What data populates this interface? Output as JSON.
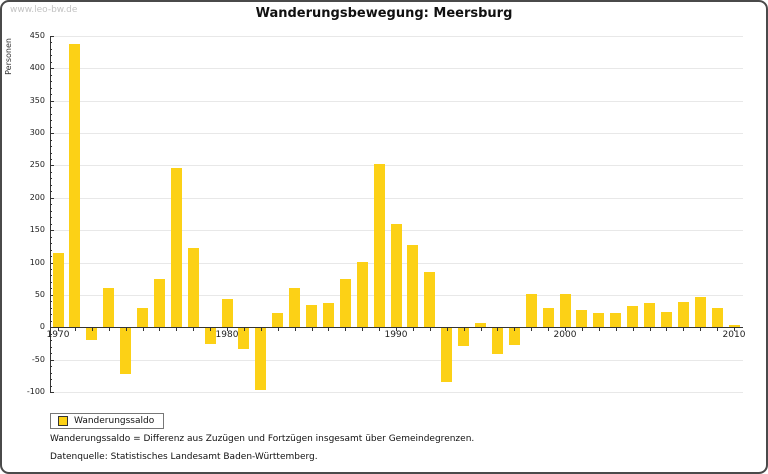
{
  "header": {
    "watermark": "www.leo-bw.de",
    "title": "Wanderungsbewegung: Meersburg"
  },
  "legend": {
    "label": "Wanderungssaldo"
  },
  "footnotes": [
    "Wanderungssaldo = Differenz aus Zuzügen und Fortzügen insgesamt über Gemeindegrenzen.",
    "Datenquelle: Statistisches Landesamt Baden-Württemberg."
  ],
  "chart_data": {
    "type": "bar",
    "title": "Wanderungsbewegung: Meersburg",
    "ylabel": "Personen",
    "xlabel": "",
    "series_name": "Wanderungssaldo",
    "x_start": 1970,
    "categories": [
      1970,
      1971,
      1972,
      1973,
      1974,
      1975,
      1976,
      1977,
      1978,
      1979,
      1980,
      1981,
      1982,
      1983,
      1984,
      1985,
      1986,
      1987,
      1988,
      1989,
      1990,
      1991,
      1992,
      1993,
      1994,
      1995,
      1996,
      1997,
      1998,
      1999,
      2000,
      2001,
      2002,
      2003,
      2004,
      2005,
      2006,
      2007,
      2008,
      2009,
      2010
    ],
    "values": [
      115,
      437,
      -18,
      60,
      -71,
      30,
      75,
      246,
      122,
      -24,
      43,
      -32,
      -95,
      22,
      60,
      34,
      37,
      74,
      101,
      253,
      160,
      127,
      86,
      -83,
      -27,
      7,
      -39,
      -26,
      52,
      30,
      52,
      26,
      22,
      22,
      33,
      38,
      23,
      39,
      47,
      30,
      3
    ],
    "ylim": [
      -100,
      450
    ],
    "ytick_step": 50,
    "y_minor_step": 10,
    "xticks": [
      1970,
      1980,
      1990,
      2000,
      2010
    ],
    "grid": true,
    "legend_position": "bottom-left",
    "bar_color": "#FCD116",
    "axis_color": "#333333",
    "grid_color": "#e8e8e8"
  }
}
